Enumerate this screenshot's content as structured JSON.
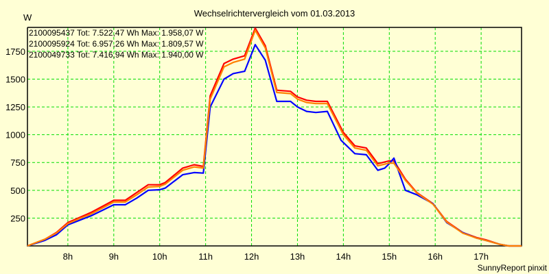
{
  "chart_data": {
    "type": "line",
    "title": "Wechselrichtervergleich vom 01.03.2013",
    "ylabel": "W",
    "xlabel": "",
    "footer": "SunnyReport pinxit",
    "xlim": [
      7.12,
      17.88
    ],
    "ylim": [
      0,
      1965
    ],
    "grid": true,
    "legend_position": "top-left",
    "x_ticks": [
      8,
      9,
      10,
      11,
      12,
      13,
      14,
      15,
      16,
      17
    ],
    "x_tick_labels": [
      "8h",
      "9h",
      "10h",
      "11h",
      "12h",
      "13h",
      "14h",
      "15h",
      "16h",
      "17h"
    ],
    "y_ticks": [
      250,
      500,
      750,
      1000,
      1250,
      1500,
      1750
    ],
    "y_tick_labels": [
      "250",
      "500",
      "750",
      "1000",
      "1250",
      "1500",
      "1750"
    ],
    "series": [
      {
        "name": "2100095437",
        "legend": "2100095437 Tot: 7.522,47 Wh Max: 1.958,07 W",
        "color": "#FF0000",
        "x": [
          7.12,
          7.5,
          7.75,
          8.0,
          8.25,
          8.5,
          8.75,
          9.0,
          9.25,
          9.5,
          9.75,
          10.0,
          10.12,
          10.5,
          10.75,
          10.95,
          11.1,
          11.4,
          11.6,
          11.85,
          12.08,
          12.3,
          12.55,
          12.85,
          13.0,
          13.2,
          13.4,
          13.65,
          14.0,
          14.25,
          14.5,
          14.75,
          15.0,
          15.1,
          15.35,
          15.6,
          15.95,
          16.25,
          16.6,
          16.9,
          17.1,
          17.4,
          17.6,
          17.88
        ],
        "y": [
          0,
          60,
          120,
          210,
          255,
          300,
          355,
          410,
          410,
          480,
          550,
          550,
          570,
          700,
          730,
          715,
          1350,
          1640,
          1680,
          1710,
          1958,
          1800,
          1400,
          1390,
          1340,
          1310,
          1300,
          1300,
          1020,
          900,
          880,
          740,
          765,
          765,
          600,
          480,
          380,
          220,
          120,
          75,
          55,
          15,
          0,
          0
        ]
      },
      {
        "name": "2100095924",
        "legend": "2100095924 Tot: 6.957,26 Wh Max: 1.809,57 W",
        "color": "#0000FF",
        "x": [
          7.12,
          7.5,
          7.75,
          8.0,
          8.25,
          8.5,
          8.75,
          9.0,
          9.25,
          9.5,
          9.75,
          10.0,
          10.12,
          10.5,
          10.75,
          10.95,
          11.1,
          11.4,
          11.6,
          11.85,
          12.08,
          12.3,
          12.55,
          12.85,
          13.0,
          13.2,
          13.4,
          13.65,
          13.95,
          14.25,
          14.5,
          14.75,
          14.9,
          15.0,
          15.1,
          15.35,
          15.6,
          15.95,
          16.25,
          16.6,
          16.9,
          17.1,
          17.4,
          17.6,
          17.88
        ],
        "y": [
          0,
          50,
          100,
          190,
          230,
          270,
          320,
          370,
          370,
          430,
          500,
          505,
          520,
          640,
          660,
          655,
          1250,
          1500,
          1550,
          1570,
          1810,
          1670,
          1300,
          1300,
          1250,
          1210,
          1200,
          1210,
          950,
          830,
          820,
          680,
          700,
          740,
          790,
          500,
          460,
          380,
          210,
          120,
          70,
          50,
          15,
          0,
          0
        ]
      },
      {
        "name": "2100049733",
        "legend": "2100049733 Tot: 7.416,94 Wh Max: 1.940,00 W",
        "color": "#FF8000",
        "x": [
          7.12,
          7.5,
          7.75,
          8.0,
          8.25,
          8.5,
          8.75,
          9.0,
          9.25,
          9.5,
          9.75,
          10.0,
          10.12,
          10.5,
          10.75,
          10.95,
          11.1,
          11.4,
          11.6,
          11.85,
          12.08,
          12.3,
          12.55,
          12.85,
          13.0,
          13.2,
          13.4,
          13.65,
          14.0,
          14.25,
          14.5,
          14.75,
          15.0,
          15.1,
          15.35,
          15.6,
          15.95,
          16.25,
          16.6,
          16.9,
          17.1,
          17.4,
          17.6,
          17.88
        ],
        "y": [
          0,
          60,
          115,
          200,
          245,
          285,
          340,
          395,
          395,
          460,
          530,
          535,
          555,
          680,
          710,
          700,
          1320,
          1610,
          1650,
          1680,
          1940,
          1780,
          1380,
          1370,
          1320,
          1290,
          1280,
          1280,
          1000,
          880,
          860,
          720,
          745,
          745,
          590,
          475,
          375,
          215,
          115,
          70,
          50,
          15,
          0,
          0
        ]
      }
    ]
  }
}
